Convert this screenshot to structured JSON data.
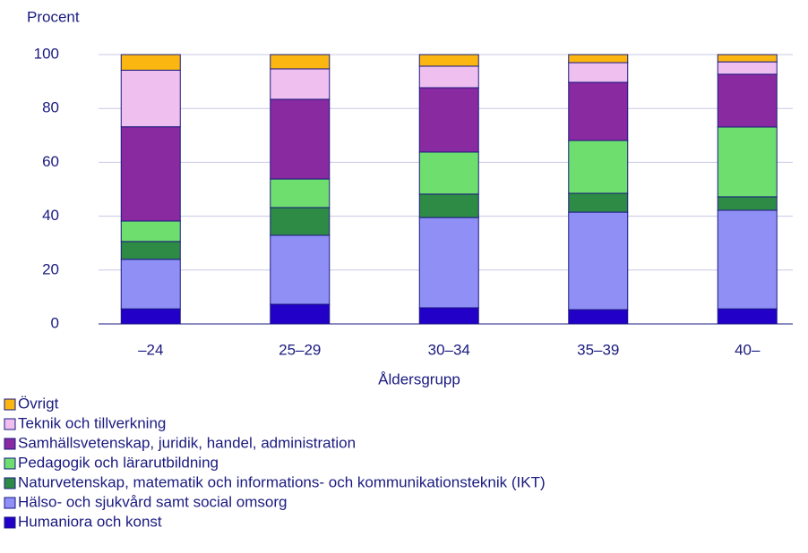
{
  "chart_data": {
    "type": "stacked_bar",
    "y_label": "Procent",
    "x_label": "Åldersgrupp",
    "categories": [
      "–24",
      "25–29",
      "30–34",
      "35–39",
      "40–"
    ],
    "ylim": [
      0,
      100
    ],
    "yticks": [
      0,
      20,
      40,
      60,
      80,
      100
    ],
    "grid": true,
    "series": [
      {
        "name": "Humaniora och konst",
        "color": "#2200c8",
        "values": [
          5.6,
          7.3,
          6.0,
          5.3,
          5.6
        ]
      },
      {
        "name": "Hälso- och sjukvård samt social omsorg",
        "color": "#8f8ff5",
        "values": [
          18.4,
          25.6,
          33.5,
          36.2,
          36.6
        ]
      },
      {
        "name": "Naturvetenskap, matematik och informations- och kommunikationsteknik (IKT)",
        "color": "#2e8b45",
        "values": [
          6.6,
          10.3,
          8.7,
          7.0,
          5.0
        ]
      },
      {
        "name": "Pedagogik och lärarutbildning",
        "color": "#6edf6e",
        "values": [
          7.6,
          10.6,
          15.6,
          19.6,
          25.9
        ]
      },
      {
        "name": "Samhällsvetenskap, juridik, handel, administration",
        "color": "#8a2aa0",
        "values": [
          35.0,
          29.6,
          23.9,
          21.6,
          19.6
        ]
      },
      {
        "name": "Teknik och tillverkning",
        "color": "#efbff0",
        "values": [
          21.0,
          11.3,
          8.0,
          7.3,
          4.6
        ]
      },
      {
        "name": "Övrigt",
        "color": "#fbb612",
        "values": [
          5.8,
          5.3,
          4.3,
          3.0,
          2.7
        ]
      }
    ]
  }
}
